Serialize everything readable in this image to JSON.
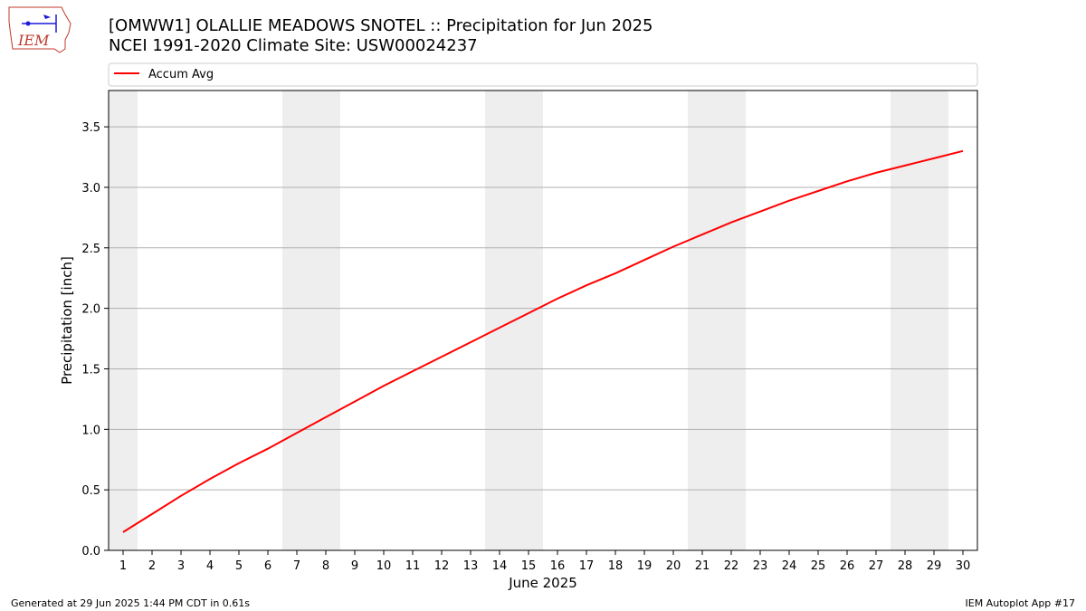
{
  "header": {
    "title_line1": "[OMWW1] OLALLIE MEADOWS SNOTEL :: Precipitation for Jun 2025",
    "title_line2": "NCEI 1991-2020 Climate Site: USW00024237",
    "logo_text": "IEM"
  },
  "footer": {
    "generated": "Generated at 29 Jun 2025 1:44 PM CDT in 0.61s",
    "app": "IEM Autoplot App #17"
  },
  "colors": {
    "line": "#ff0000",
    "weekend_band": "#eeeeee",
    "grid": "#b0b0b0"
  },
  "chart_data": {
    "type": "line",
    "xlabel": "June 2025",
    "ylabel": "Precipitation [inch]",
    "xlim": [
      0.5,
      30.5
    ],
    "ylim": [
      0,
      3.8
    ],
    "yticks": [
      0.0,
      0.5,
      1.0,
      1.5,
      2.0,
      2.5,
      3.0,
      3.5
    ],
    "ytick_labels": [
      "0.0",
      "0.5",
      "1.0",
      "1.5",
      "2.0",
      "2.5",
      "3.0",
      "3.5"
    ],
    "xticks": [
      1,
      2,
      3,
      4,
      5,
      6,
      7,
      8,
      9,
      10,
      11,
      12,
      13,
      14,
      15,
      16,
      17,
      18,
      19,
      20,
      21,
      22,
      23,
      24,
      25,
      26,
      27,
      28,
      29,
      30
    ],
    "grid": "horizontal",
    "legend": {
      "placement": "top-left, above plot",
      "entries": [
        "Accum Avg"
      ]
    },
    "weekend_bands": [
      [
        0.5,
        1.5
      ],
      [
        6.5,
        8.5
      ],
      [
        13.5,
        15.5
      ],
      [
        20.5,
        22.5
      ],
      [
        27.5,
        29.5
      ]
    ],
    "series": [
      {
        "name": "Accum Avg",
        "color": "#ff0000",
        "x": [
          1,
          2,
          3,
          4,
          5,
          6,
          7,
          8,
          9,
          10,
          11,
          12,
          13,
          14,
          15,
          16,
          17,
          18,
          19,
          20,
          21,
          22,
          23,
          24,
          25,
          26,
          27,
          28,
          29,
          30
        ],
        "values": [
          0.15,
          0.3,
          0.45,
          0.59,
          0.72,
          0.84,
          0.97,
          1.1,
          1.23,
          1.36,
          1.48,
          1.6,
          1.72,
          1.84,
          1.96,
          2.08,
          2.19,
          2.29,
          2.4,
          2.51,
          2.61,
          2.71,
          2.8,
          2.89,
          2.97,
          3.05,
          3.12,
          3.18,
          3.24,
          3.3
        ]
      }
    ]
  }
}
